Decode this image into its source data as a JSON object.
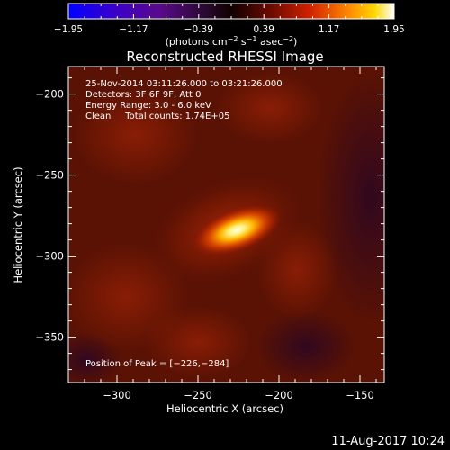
{
  "chart_data": {
    "type": "heatmap",
    "title": "Reconstructed RHESSI Image",
    "xlabel": "Heliocentric X (arcsec)",
    "ylabel": "Heliocentric Y (arcsec)",
    "xlim": [
      -330,
      -135
    ],
    "ylim": [
      -378,
      -183
    ],
    "x_ticks": [
      -300,
      -250,
      -200,
      -150
    ],
    "x_tick_labels": [
      "−300",
      "−250",
      "−200",
      "−150"
    ],
    "y_ticks": [
      -200,
      -250,
      -300,
      -350
    ],
    "y_tick_labels": [
      "−200",
      "−250",
      "−300",
      "−350"
    ],
    "colorbar": {
      "range": [
        -1.95,
        1.95
      ],
      "ticks": [
        -1.95,
        -1.17,
        -0.39,
        0.39,
        1.17,
        1.95
      ],
      "tick_labels": [
        "−1.95",
        "−1.17",
        "−0.39",
        "0.39",
        "1.17",
        "1.95"
      ],
      "colormap": "blue-purple-red-yellow-white"
    },
    "peak": {
      "x": -226,
      "y": -284,
      "value": 1.95
    },
    "annotations": [
      "25-Nov-2014 03:11:26.000 to 03:21:26.000",
      "Detectors: 3F 6F 9F, Att 0",
      "Energy Range: 3.0 - 6.0 keV",
      "Clean     Total counts: 1.74E+05",
      "Position of Peak = [−226,−284]"
    ],
    "grid": false
  },
  "colorbar_units": {
    "base": "(photons cm",
    "exp1": "−2",
    "mid": " s",
    "exp2": "−1",
    "tail": " asec",
    "exp3": "−2",
    "close": ")"
  },
  "timestamp": "11-Aug-2017 10:24",
  "colors": {
    "background": "#000000",
    "axis": "#ffffff",
    "flare_core": "#ffffe0",
    "field": "#5a1204"
  }
}
